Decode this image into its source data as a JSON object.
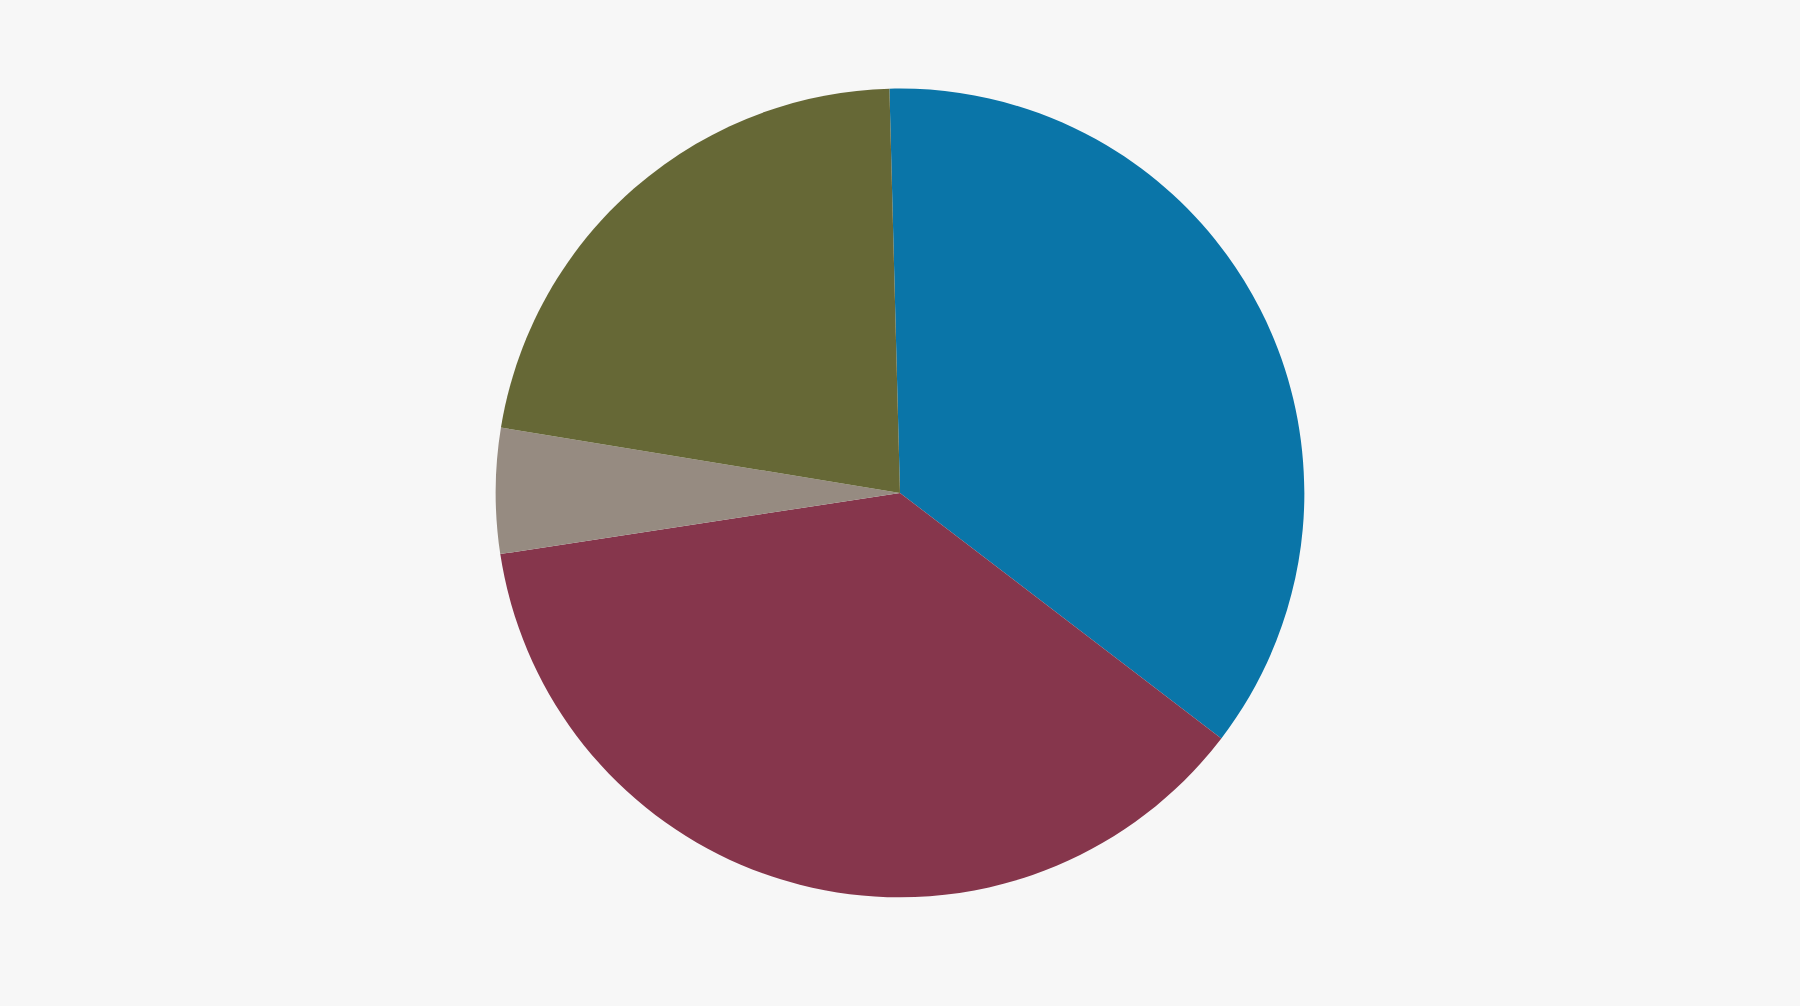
{
  "chart_data": {
    "type": "pie",
    "categories": [
      null,
      null,
      null,
      null
    ],
    "values": [
      35.8,
      37.2,
      5.0,
      22.0
    ],
    "colors": [
      "#0a75a8",
      "#86364c",
      "#968b81",
      "#666836"
    ]
  }
}
